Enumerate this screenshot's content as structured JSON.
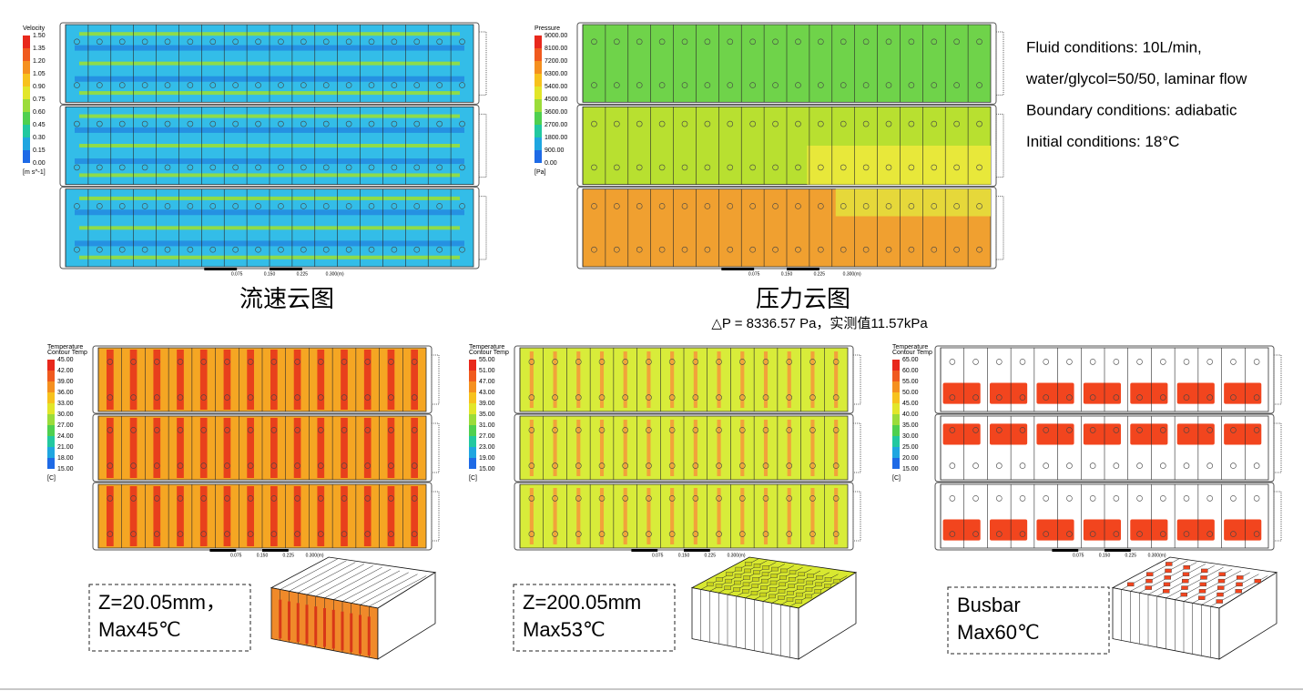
{
  "flow_panels": [
    {
      "legend": {
        "title": [
          "Velocity"
        ],
        "labels": [
          "1.50",
          "1.35",
          "1.20",
          "1.05",
          "0.90",
          "0.75",
          "0.60",
          "0.45",
          "0.30",
          "0.15",
          "0.00"
        ],
        "unit": "[m s^-1]"
      },
      "caption": "流速云图"
    },
    {
      "legend": {
        "title": [
          "Pressure"
        ],
        "labels": [
          "9000.00",
          "8100.00",
          "7200.00",
          "6300.00",
          "5400.00",
          "4500.00",
          "3600.00",
          "2700.00",
          "1800.00",
          "900.00",
          "0.00"
        ],
        "unit": "[Pa]"
      },
      "caption": "压力云图"
    }
  ],
  "pressure_note": "△P =  8336.57 Pa，实测值11.57kPa",
  "conditions": [
    "Fluid conditions: 10L/min,",
    "water/glycol=50/50, laminar flow",
    "Boundary conditions: adiabatic",
    "Initial conditions: 18°C"
  ],
  "scale_labels": [
    "0.075",
    "0.150",
    "0.225",
    "0.300(m)"
  ],
  "temp_panels": [
    {
      "legend": {
        "title": [
          "Temperature",
          "Contour Temp"
        ],
        "labels": [
          "45.00",
          "42.00",
          "39.00",
          "36.00",
          "33.00",
          "30.00",
          "27.00",
          "24.00",
          "21.00",
          "18.00",
          "15.00"
        ],
        "unit": "[C]"
      },
      "note": [
        "Z=20.05mm，",
        "Max45℃"
      ]
    },
    {
      "legend": {
        "title": [
          "Temperature",
          "Contour Temp"
        ],
        "labels": [
          "55.00",
          "51.00",
          "47.00",
          "43.00",
          "39.00",
          "35.00",
          "31.00",
          "27.00",
          "23.00",
          "19.00",
          "15.00"
        ],
        "unit": "[C]"
      },
      "note": [
        "Z=200.05mm",
        "Max53℃"
      ]
    },
    {
      "legend": {
        "title": [
          "Temperature",
          "Contour Temp"
        ],
        "labels": [
          "65.00",
          "60.00",
          "55.00",
          "50.00",
          "45.00",
          "40.00",
          "35.00",
          "30.00",
          "25.00",
          "20.00",
          "15.00"
        ],
        "unit": "[C]"
      },
      "note": [
        "Busbar",
        "Max60℃"
      ]
    }
  ]
}
